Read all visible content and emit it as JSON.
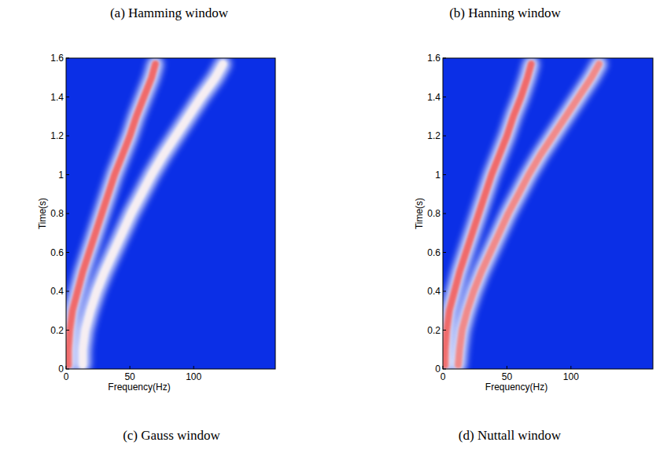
{
  "chart_data": [
    {
      "type": "line",
      "title": "(a) Hamming window",
      "x_label": "Frequency(Hz)",
      "y_label": "Time(s)",
      "color": "#0b2fe6",
      "xlim": [
        0,
        164
      ],
      "ylim": [
        0,
        1.6
      ],
      "xticks": [
        0,
        50,
        100
      ],
      "yticks": [
        0,
        0.2,
        0.4,
        0.6,
        0.8,
        1,
        1.2,
        1.4,
        1.6
      ],
      "series": [
        {
          "color": "#f06a6a",
          "x": [
            2,
            2,
            3,
            5,
            9,
            13,
            18,
            23,
            28,
            33,
            38,
            44,
            50,
            55,
            61,
            67,
            70
          ],
          "values": [
            0.02,
            0.1,
            0.2,
            0.3,
            0.4,
            0.5,
            0.6,
            0.7,
            0.8,
            0.9,
            1,
            1.1,
            1.2,
            1.3,
            1.4,
            1.5,
            1.57
          ]
        },
        {
          "color": "#f6eef2",
          "x": [
            13,
            13,
            15,
            19,
            24,
            30,
            37,
            44,
            51,
            59,
            67,
            76,
            86,
            96,
            106,
            117,
            123
          ],
          "values": [
            0.02,
            0.1,
            0.2,
            0.3,
            0.4,
            0.5,
            0.6,
            0.7,
            0.8,
            0.9,
            1,
            1.1,
            1.2,
            1.3,
            1.4,
            1.5,
            1.57
          ]
        }
      ]
    },
    {
      "type": "line",
      "title": "(b) Hanning window",
      "x_label": "Frequency(Hz)",
      "y_label": "Time(s)",
      "color": "#0b2fe6",
      "xlim": [
        0,
        164
      ],
      "ylim": [
        0,
        1.6
      ],
      "xticks": [
        0,
        50,
        100
      ],
      "yticks": [
        0,
        0.2,
        0.4,
        0.6,
        0.8,
        1,
        1.2,
        1.4,
        1.6
      ],
      "series": [
        {
          "color": "#f06a6a",
          "x": [
            2,
            2,
            3,
            5,
            9,
            13,
            18,
            23,
            28,
            33,
            38,
            44,
            50,
            55,
            61,
            66,
            69
          ],
          "values": [
            0.02,
            0.1,
            0.2,
            0.3,
            0.4,
            0.5,
            0.6,
            0.7,
            0.8,
            0.9,
            1,
            1.1,
            1.2,
            1.3,
            1.4,
            1.5,
            1.57
          ]
        },
        {
          "color": "#f08a8a",
          "x": [
            12,
            13,
            15,
            19,
            24,
            30,
            37,
            44,
            51,
            59,
            67,
            76,
            86,
            96,
            106,
            116,
            122
          ],
          "values": [
            0.02,
            0.1,
            0.2,
            0.3,
            0.4,
            0.5,
            0.6,
            0.7,
            0.8,
            0.9,
            1,
            1.1,
            1.2,
            1.3,
            1.4,
            1.5,
            1.57
          ]
        }
      ]
    }
  ],
  "captions": [
    "(c) Gauss window",
    "(d) Nuttall window"
  ]
}
